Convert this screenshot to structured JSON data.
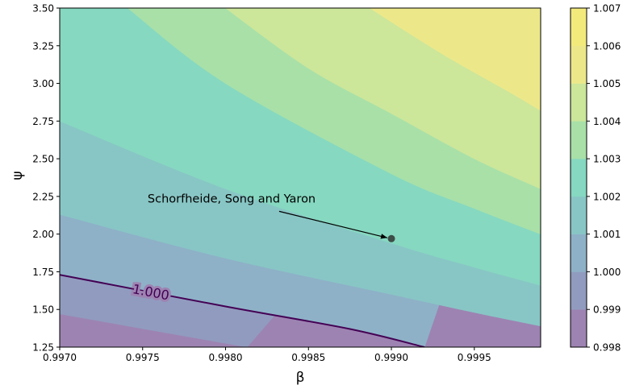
{
  "chart_data": {
    "type": "contour",
    "xlabel": "β",
    "ylabel": "ψ",
    "xlim": [
      0.997,
      0.9999
    ],
    "ylim": [
      1.25,
      3.5
    ],
    "x_ticks": [
      "0.9970",
      "0.9975",
      "0.9980",
      "0.9985",
      "0.9990",
      "0.9995"
    ],
    "x_tick_values": [
      0.997,
      0.9975,
      0.998,
      0.9985,
      0.999,
      0.9995
    ],
    "y_ticks": [
      "1.25",
      "1.50",
      "1.75",
      "2.00",
      "2.25",
      "2.50",
      "2.75",
      "3.00",
      "3.25",
      "3.50"
    ],
    "y_tick_values": [
      1.25,
      1.5,
      1.75,
      2.0,
      2.25,
      2.5,
      2.75,
      3.0,
      3.25,
      3.5
    ],
    "levels": [
      0.998,
      0.999,
      1.0,
      1.001,
      1.002,
      1.003,
      1.004,
      1.005,
      1.006,
      1.007
    ],
    "colorbar_ticks": [
      "0.998",
      "0.999",
      "1.000",
      "1.001",
      "1.002",
      "1.003",
      "1.004",
      "1.005",
      "1.006",
      "1.007"
    ],
    "colormap": "viridis",
    "band_colors": [
      "#9d83b2",
      "#919bbf",
      "#8eb1c7",
      "#88c6c5",
      "#86d8c0",
      "#a8e0a8",
      "#cce69a",
      "#ece88a",
      "#f3ea7c"
    ],
    "colorbar_colors": [
      "#9d83b2",
      "#919bbf",
      "#8eb1c7",
      "#88c6c5",
      "#86d8c0",
      "#a8e0a8",
      "#cce69a",
      "#ece88a",
      "#f3ea7c"
    ],
    "contour_line": {
      "level": 1.0,
      "label": "1.000",
      "color": "#440154"
    },
    "annotation": {
      "text": "Schorfheide, Song and Yaron",
      "point": {
        "x": 0.999,
        "y": 1.97
      },
      "text_anchor": {
        "x": 0.99753,
        "y": 2.21
      }
    },
    "boundaries": [
      {
        "level": 0.999,
        "points": [
          [
            0.997,
            1.47
          ],
          [
            0.99813,
            1.25
          ]
        ]
      },
      {
        "level": 1.0,
        "points": [
          [
            0.997,
            1.73
          ],
          [
            0.998,
            1.52
          ],
          [
            0.99875,
            1.37
          ],
          [
            0.9992,
            1.25
          ]
        ]
      },
      {
        "level": 1.001,
        "points": [
          [
            0.997,
            2.13
          ],
          [
            0.998,
            1.84
          ],
          [
            0.999,
            1.6
          ],
          [
            0.9995,
            1.48
          ],
          [
            0.9999,
            1.39
          ]
        ]
      },
      {
        "level": 1.002,
        "points": [
          [
            0.997,
            2.75
          ],
          [
            0.998,
            2.3
          ],
          [
            0.999,
            1.94
          ],
          [
            0.9995,
            1.78
          ],
          [
            0.9999,
            1.66
          ]
        ]
      },
      {
        "level": 1.003,
        "points": [
          [
            0.99741,
            3.5
          ],
          [
            0.998,
            3.0
          ],
          [
            0.999,
            2.4
          ],
          [
            0.9995,
            2.17
          ],
          [
            0.9999,
            2.0
          ]
        ]
      },
      {
        "level": 1.004,
        "points": [
          [
            0.998,
            3.5
          ],
          [
            0.9985,
            3.1
          ],
          [
            0.999,
            2.8
          ],
          [
            0.9995,
            2.5
          ],
          [
            0.9999,
            2.3
          ]
        ]
      },
      {
        "level": 1.005,
        "points": [
          [
            0.99887,
            3.5
          ],
          [
            0.9993,
            3.2
          ],
          [
            0.9997,
            2.95
          ],
          [
            0.9999,
            2.82
          ]
        ]
      }
    ]
  }
}
